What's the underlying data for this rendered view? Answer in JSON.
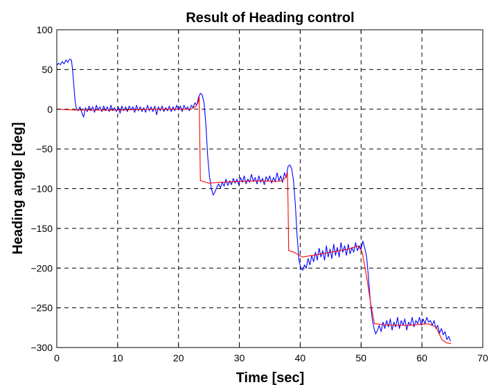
{
  "chart_data": {
    "type": "line",
    "title": "Result of Heading control",
    "xlabel": "Time [sec]",
    "ylabel": "Heading angle [deg]",
    "xlim": [
      0,
      70
    ],
    "ylim": [
      -300,
      100
    ],
    "xticks": [
      0,
      10,
      20,
      30,
      40,
      50,
      60,
      70
    ],
    "yticks": [
      100,
      50,
      0,
      -50,
      -100,
      -150,
      -200,
      -250,
      -300
    ],
    "grid": true,
    "series": [
      {
        "color": "#0000ff",
        "points": [
          [
            0.0,
            55
          ],
          [
            0.3,
            58
          ],
          [
            0.6,
            56
          ],
          [
            0.9,
            60
          ],
          [
            1.2,
            57
          ],
          [
            1.5,
            62
          ],
          [
            1.8,
            59
          ],
          [
            2.1,
            63
          ],
          [
            2.4,
            62
          ],
          [
            2.6,
            50
          ],
          [
            2.8,
            30
          ],
          [
            3.0,
            10
          ],
          [
            3.2,
            2
          ],
          [
            3.5,
            -2
          ],
          [
            3.8,
            3
          ],
          [
            4.1,
            -4
          ],
          [
            4.4,
            -10
          ],
          [
            4.7,
            2
          ],
          [
            5.0,
            -3
          ],
          [
            5.3,
            4
          ],
          [
            5.6,
            -2
          ],
          [
            5.9,
            3
          ],
          [
            6.2,
            -4
          ],
          [
            6.5,
            5
          ],
          [
            6.8,
            -1
          ],
          [
            7.1,
            3
          ],
          [
            7.4,
            -3
          ],
          [
            7.7,
            4
          ],
          [
            8.0,
            -2
          ],
          [
            8.3,
            3
          ],
          [
            8.6,
            -3
          ],
          [
            8.9,
            5
          ],
          [
            9.2,
            -2
          ],
          [
            9.5,
            2
          ],
          [
            9.8,
            -3
          ],
          [
            10.1,
            3
          ],
          [
            10.4,
            -5
          ],
          [
            10.7,
            4
          ],
          [
            11.0,
            -2
          ],
          [
            11.3,
            3
          ],
          [
            11.6,
            -3
          ],
          [
            11.9,
            4
          ],
          [
            12.2,
            -1
          ],
          [
            12.5,
            3
          ],
          [
            12.8,
            -4
          ],
          [
            13.1,
            5
          ],
          [
            13.4,
            -2
          ],
          [
            13.7,
            3
          ],
          [
            14.0,
            -3
          ],
          [
            14.3,
            2
          ],
          [
            14.6,
            -4
          ],
          [
            14.9,
            5
          ],
          [
            15.2,
            -2
          ],
          [
            15.5,
            3
          ],
          [
            15.8,
            -3
          ],
          [
            16.1,
            4
          ],
          [
            16.4,
            -7
          ],
          [
            16.7,
            3
          ],
          [
            17.0,
            -2
          ],
          [
            17.3,
            4
          ],
          [
            17.6,
            -3
          ],
          [
            17.9,
            2
          ],
          [
            18.2,
            -2
          ],
          [
            18.5,
            4
          ],
          [
            18.8,
            -3
          ],
          [
            19.1,
            3
          ],
          [
            19.4,
            -2
          ],
          [
            19.7,
            5
          ],
          [
            20.0,
            -1
          ],
          [
            20.3,
            4
          ],
          [
            20.6,
            -3
          ],
          [
            20.9,
            5
          ],
          [
            21.2,
            0
          ],
          [
            21.5,
            3
          ],
          [
            21.8,
            -2
          ],
          [
            22.1,
            5
          ],
          [
            22.4,
            2
          ],
          [
            22.7,
            8
          ],
          [
            23.0,
            5
          ],
          [
            23.3,
            15
          ],
          [
            23.6,
            20
          ],
          [
            23.9,
            18
          ],
          [
            24.2,
            8
          ],
          [
            24.5,
            -20
          ],
          [
            24.8,
            -60
          ],
          [
            25.1,
            -85
          ],
          [
            25.4,
            -100
          ],
          [
            25.7,
            -108
          ],
          [
            26.0,
            -104
          ],
          [
            26.3,
            -98
          ],
          [
            26.6,
            -94
          ],
          [
            26.9,
            -99
          ],
          [
            27.2,
            -92
          ],
          [
            27.5,
            -97
          ],
          [
            27.8,
            -88
          ],
          [
            28.1,
            -96
          ],
          [
            28.4,
            -90
          ],
          [
            28.7,
            -95
          ],
          [
            29.0,
            -87
          ],
          [
            29.3,
            -93
          ],
          [
            29.6,
            -88
          ],
          [
            29.9,
            -95
          ],
          [
            30.2,
            -86
          ],
          [
            30.5,
            -92
          ],
          [
            30.8,
            -84
          ],
          [
            31.1,
            -94
          ],
          [
            31.4,
            -88
          ],
          [
            31.7,
            -92
          ],
          [
            32.0,
            -82
          ],
          [
            32.3,
            -91
          ],
          [
            32.6,
            -86
          ],
          [
            32.9,
            -94
          ],
          [
            33.2,
            -84
          ],
          [
            33.5,
            -92
          ],
          [
            33.8,
            -87
          ],
          [
            34.1,
            -95
          ],
          [
            34.4,
            -85
          ],
          [
            34.7,
            -90
          ],
          [
            35.0,
            -84
          ],
          [
            35.3,
            -93
          ],
          [
            35.6,
            -86
          ],
          [
            35.9,
            -91
          ],
          [
            36.2,
            -80
          ],
          [
            36.5,
            -90
          ],
          [
            36.8,
            -84
          ],
          [
            37.1,
            -92
          ],
          [
            37.4,
            -80
          ],
          [
            37.7,
            -86
          ],
          [
            38.0,
            -72
          ],
          [
            38.3,
            -70
          ],
          [
            38.6,
            -75
          ],
          [
            38.9,
            -90
          ],
          [
            39.2,
            -120
          ],
          [
            39.5,
            -160
          ],
          [
            39.8,
            -190
          ],
          [
            40.1,
            -200
          ],
          [
            40.4,
            -203
          ],
          [
            40.7,
            -196
          ],
          [
            41.0,
            -200
          ],
          [
            41.3,
            -188
          ],
          [
            41.6,
            -196
          ],
          [
            41.9,
            -184
          ],
          [
            42.2,
            -192
          ],
          [
            42.5,
            -180
          ],
          [
            42.8,
            -190
          ],
          [
            43.1,
            -175
          ],
          [
            43.4,
            -186
          ],
          [
            43.7,
            -178
          ],
          [
            44.0,
            -190
          ],
          [
            44.3,
            -172
          ],
          [
            44.6,
            -186
          ],
          [
            44.9,
            -176
          ],
          [
            45.2,
            -188
          ],
          [
            45.5,
            -170
          ],
          [
            45.8,
            -184
          ],
          [
            46.1,
            -174
          ],
          [
            46.4,
            -186
          ],
          [
            46.7,
            -168
          ],
          [
            47.0,
            -180
          ],
          [
            47.3,
            -172
          ],
          [
            47.6,
            -184
          ],
          [
            47.9,
            -170
          ],
          [
            48.2,
            -182
          ],
          [
            48.5,
            -174
          ],
          [
            48.8,
            -180
          ],
          [
            49.1,
            -168
          ],
          [
            49.4,
            -178
          ],
          [
            49.7,
            -172
          ],
          [
            50.0,
            -176
          ],
          [
            50.3,
            -166
          ],
          [
            50.6,
            -175
          ],
          [
            50.9,
            -185
          ],
          [
            51.2,
            -210
          ],
          [
            51.5,
            -240
          ],
          [
            51.8,
            -262
          ],
          [
            52.1,
            -275
          ],
          [
            52.4,
            -283
          ],
          [
            52.7,
            -278
          ],
          [
            53.0,
            -272
          ],
          [
            53.3,
            -280
          ],
          [
            53.6,
            -268
          ],
          [
            53.9,
            -276
          ],
          [
            54.2,
            -266
          ],
          [
            54.5,
            -274
          ],
          [
            54.8,
            -264
          ],
          [
            55.1,
            -278
          ],
          [
            55.4,
            -268
          ],
          [
            55.7,
            -274
          ],
          [
            56.0,
            -262
          ],
          [
            56.3,
            -276
          ],
          [
            56.6,
            -266
          ],
          [
            56.9,
            -272
          ],
          [
            57.2,
            -264
          ],
          [
            57.5,
            -278
          ],
          [
            57.8,
            -268
          ],
          [
            58.1,
            -272
          ],
          [
            58.4,
            -262
          ],
          [
            58.7,
            -274
          ],
          [
            59.0,
            -266
          ],
          [
            59.3,
            -270
          ],
          [
            59.6,
            -262
          ],
          [
            59.9,
            -272
          ],
          [
            60.2,
            -264
          ],
          [
            60.5,
            -270
          ],
          [
            60.8,
            -262
          ],
          [
            61.1,
            -268
          ],
          [
            61.4,
            -266
          ],
          [
            61.7,
            -272
          ],
          [
            62.0,
            -266
          ],
          [
            62.3,
            -276
          ],
          [
            62.6,
            -272
          ],
          [
            62.9,
            -282
          ],
          [
            63.2,
            -276
          ],
          [
            63.5,
            -284
          ],
          [
            63.8,
            -280
          ],
          [
            64.1,
            -290
          ],
          [
            64.4,
            -286
          ],
          [
            64.7,
            -292
          ]
        ]
      },
      {
        "color": "#ff0000",
        "points": [
          [
            0,
            0
          ],
          [
            3.0,
            -1
          ],
          [
            10,
            -1
          ],
          [
            15,
            0
          ],
          [
            20,
            0
          ],
          [
            22.0,
            0
          ],
          [
            22.8,
            3
          ],
          [
            23.2,
            8
          ],
          [
            23.4,
            15
          ],
          [
            23.5,
            -40
          ],
          [
            23.6,
            -90
          ],
          [
            25.0,
            -93
          ],
          [
            27.0,
            -92
          ],
          [
            30.0,
            -91
          ],
          [
            33.0,
            -90
          ],
          [
            36.0,
            -91
          ],
          [
            37.0,
            -90
          ],
          [
            37.6,
            -86
          ],
          [
            37.9,
            -80
          ],
          [
            38.0,
            -120
          ],
          [
            38.1,
            -178
          ],
          [
            39.0,
            -180
          ],
          [
            40.3,
            -186
          ],
          [
            42.0,
            -184
          ],
          [
            45.0,
            -180
          ],
          [
            48.0,
            -176
          ],
          [
            49.5,
            -172
          ],
          [
            50.2,
            -180
          ],
          [
            51.0,
            -215
          ],
          [
            51.6,
            -245
          ],
          [
            52.2,
            -270
          ],
          [
            55.0,
            -272
          ],
          [
            58.0,
            -272
          ],
          [
            61.0,
            -270
          ],
          [
            62.3,
            -274
          ],
          [
            63.3,
            -290
          ],
          [
            64.0,
            -294
          ],
          [
            64.8,
            -295
          ]
        ]
      }
    ]
  }
}
